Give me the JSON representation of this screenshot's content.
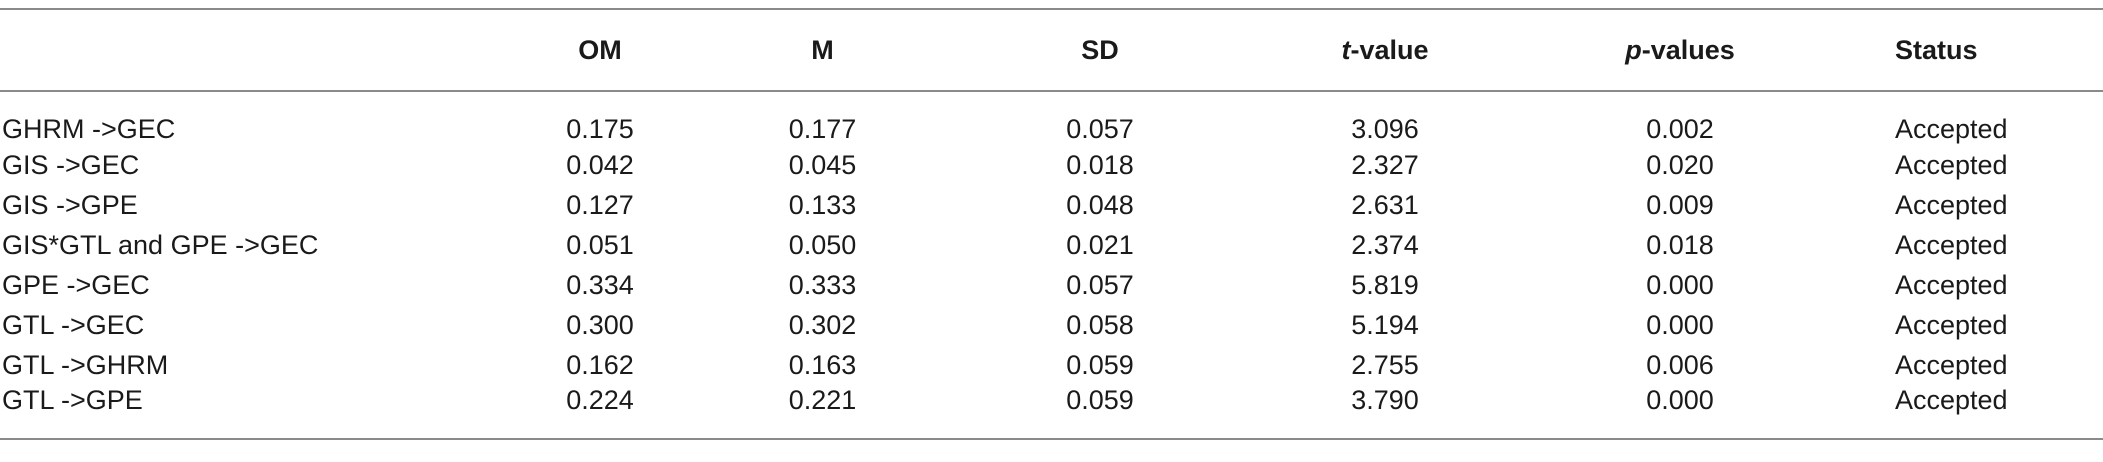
{
  "table": {
    "headers": {
      "path": "",
      "om": "OM",
      "m": "M",
      "sd": "SD",
      "t_prefix": "t",
      "t_suffix": "-value",
      "p_prefix": "p",
      "p_suffix": "-values",
      "status": "Status"
    },
    "rows": [
      {
        "path": "GHRM ->GEC",
        "om": "0.175",
        "m": "0.177",
        "sd": "0.057",
        "t": "3.096",
        "p": "0.002",
        "status": "Accepted"
      },
      {
        "path": "GIS ->GEC",
        "om": "0.042",
        "m": "0.045",
        "sd": "0.018",
        "t": "2.327",
        "p": "0.020",
        "status": "Accepted"
      },
      {
        "path": "GIS ->GPE",
        "om": "0.127",
        "m": "0.133",
        "sd": "0.048",
        "t": "2.631",
        "p": "0.009",
        "status": "Accepted"
      },
      {
        "path": "GIS*GTL and GPE ->GEC",
        "om": "0.051",
        "m": "0.050",
        "sd": "0.021",
        "t": "2.374",
        "p": "0.018",
        "status": "Accepted"
      },
      {
        "path": "GPE ->GEC",
        "om": "0.334",
        "m": "0.333",
        "sd": "0.057",
        "t": "5.819",
        "p": "0.000",
        "status": "Accepted"
      },
      {
        "path": "GTL ->GEC",
        "om": "0.300",
        "m": "0.302",
        "sd": "0.058",
        "t": "5.194",
        "p": "0.000",
        "status": "Accepted"
      },
      {
        "path": "GTL ->GHRM",
        "om": "0.162",
        "m": "0.163",
        "sd": "0.059",
        "t": "2.755",
        "p": "0.006",
        "status": "Accepted"
      },
      {
        "path": "GTL ->GPE",
        "om": "0.224",
        "m": "0.221",
        "sd": "0.059",
        "t": "3.790",
        "p": "0.000",
        "status": "Accepted"
      }
    ]
  }
}
